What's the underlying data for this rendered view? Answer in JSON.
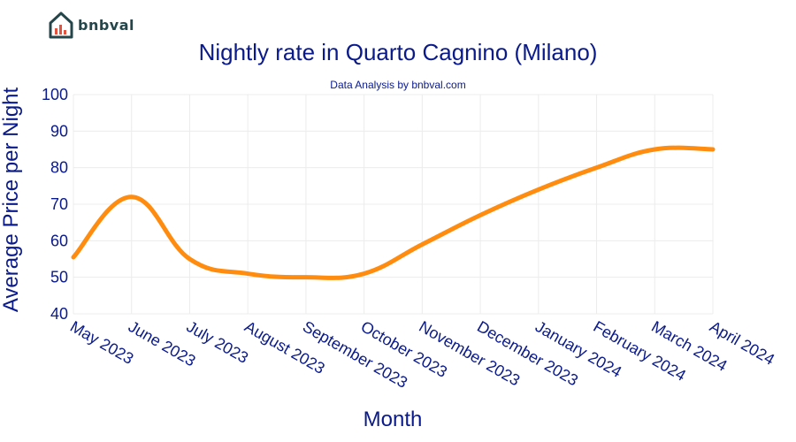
{
  "brand": {
    "name": "bnbval",
    "logo_icon": "house-chart-icon"
  },
  "colors": {
    "line": "#ff8c0f",
    "text": "#0a1a8a",
    "grid": "#ececec"
  },
  "chart_data": {
    "type": "line",
    "title": "Nightly rate in Quarto Cagnino (Milano)",
    "subtitle": "Data Analysis by bnbval.com",
    "xlabel": "Month",
    "ylabel": "Average Price per Night",
    "ylim": [
      40,
      100
    ],
    "yticks": [
      40,
      50,
      60,
      70,
      80,
      90,
      100
    ],
    "grid": true,
    "categories": [
      "May 2023",
      "June 2023",
      "July 2023",
      "August 2023",
      "September 2023",
      "October 2023",
      "November 2023",
      "December 2023",
      "January 2024",
      "February 2024",
      "March 2024",
      "April 2024"
    ],
    "series": [
      {
        "values": [
          55.5,
          72,
          55,
          51,
          50,
          51,
          59,
          67,
          74,
          80,
          85,
          85
        ]
      }
    ]
  }
}
